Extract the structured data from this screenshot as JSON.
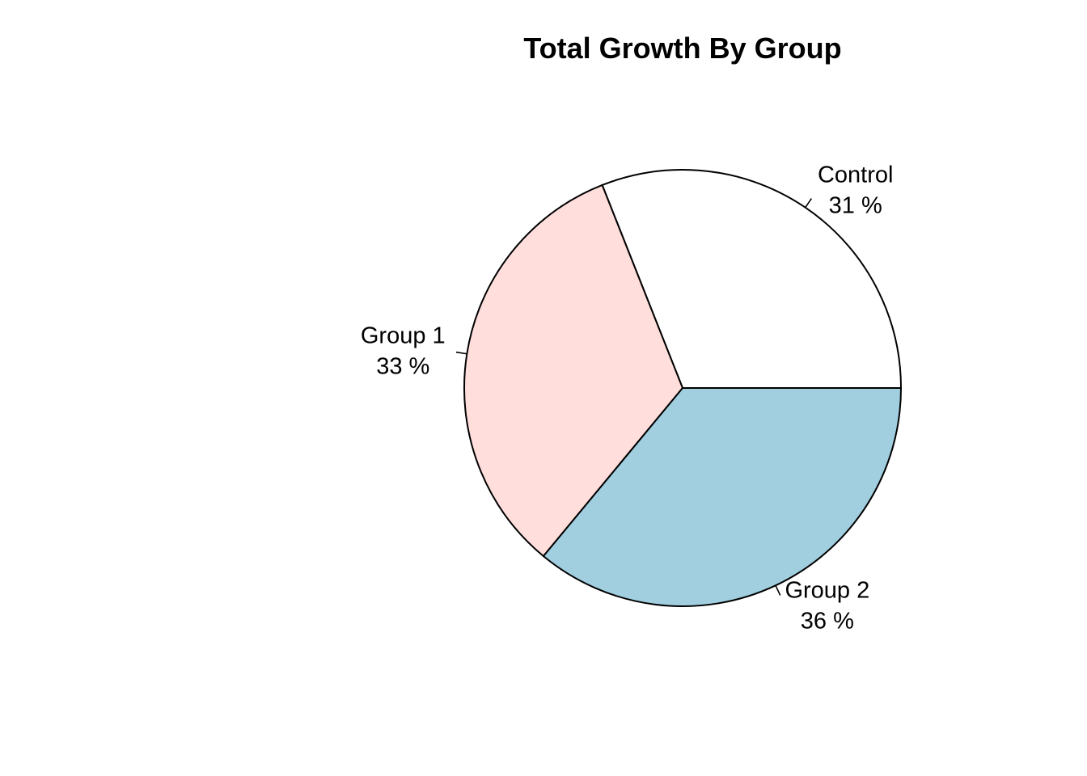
{
  "chart_data": {
    "type": "pie",
    "title": "Total Growth By Group",
    "slices": [
      {
        "label": "Control",
        "percent_label": "31 %",
        "value": 31,
        "color": "#ffffff"
      },
      {
        "label": "Group 1",
        "percent_label": "33 %",
        "value": 33,
        "color": "#ffdedc"
      },
      {
        "label": "Group 2",
        "percent_label": "36 %",
        "value": 36,
        "color": "#a1cfe0"
      }
    ],
    "start_angle_deg": 0,
    "direction": "counterclockwise",
    "legend": "none"
  }
}
